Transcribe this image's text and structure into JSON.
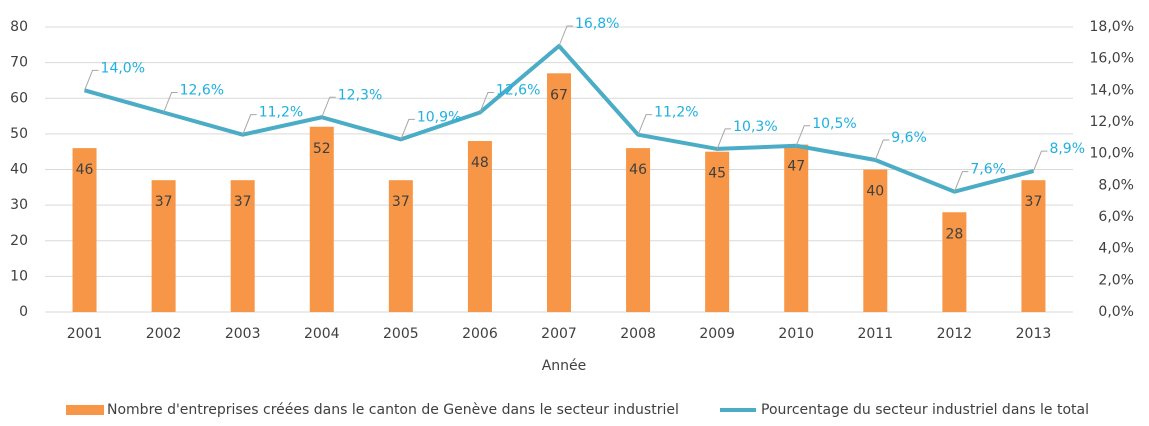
{
  "chart_data": {
    "type": "bar_line",
    "x_label": "Année",
    "categories": [
      "2001",
      "2002",
      "2003",
      "2004",
      "2005",
      "2006",
      "2007",
      "2008",
      "2009",
      "2010",
      "2011",
      "2012",
      "2013"
    ],
    "series": [
      {
        "name": "Nombre d'entreprises créées dans le canton de Genève dans le secteur industriel",
        "type": "bar",
        "color": "#f79646",
        "values": [
          46,
          37,
          37,
          52,
          37,
          48,
          67,
          46,
          45,
          47,
          40,
          28,
          37
        ]
      },
      {
        "name": "Pourcentage du secteur industriel dans le total",
        "type": "line",
        "axis": "y2",
        "color": "#4bacc6",
        "values": [
          14.0,
          12.6,
          11.2,
          12.3,
          10.9,
          12.6,
          16.8,
          11.2,
          10.3,
          10.5,
          9.6,
          7.6,
          8.9
        ],
        "value_labels": [
          "14,0%",
          "12,6%",
          "11,2%",
          "12,3%",
          "10,9%",
          "12,6%",
          "16,8%",
          "11,2%",
          "10,3%",
          "10,5%",
          "9,6%",
          "7,6%",
          "8,9%"
        ]
      }
    ],
    "ylim": [
      0,
      80
    ],
    "yticks": [
      0,
      10,
      20,
      30,
      40,
      50,
      60,
      70,
      80
    ],
    "y2lim": [
      0,
      18
    ],
    "y2ticks": [
      {
        "value": 0,
        "label": "0,0%"
      },
      {
        "value": 2,
        "label": "2,0%"
      },
      {
        "value": 4,
        "label": "4,0%"
      },
      {
        "value": 6,
        "label": "6,0%"
      },
      {
        "value": 8,
        "label": "8,0%"
      },
      {
        "value": 10,
        "label": "10,0%"
      },
      {
        "value": 12,
        "label": "12,0%"
      },
      {
        "value": 14,
        "label": "14,0%"
      },
      {
        "value": 16,
        "label": "16,0%"
      },
      {
        "value": 18,
        "label": "18,0%"
      }
    ],
    "grid": true,
    "legend": "bottom"
  }
}
